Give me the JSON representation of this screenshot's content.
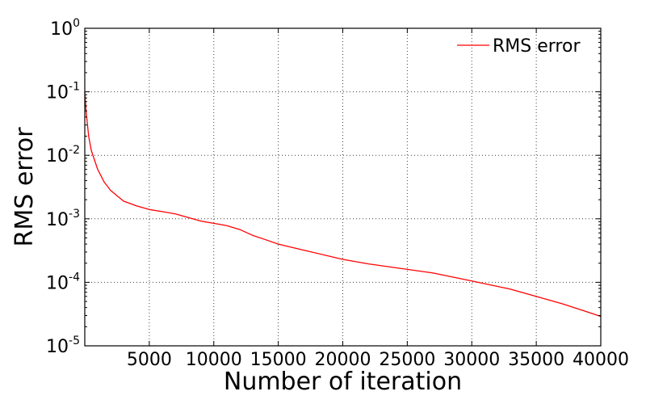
{
  "chart_data": {
    "type": "line",
    "xlabel": "Number of iteration",
    "ylabel": "RMS error",
    "xlim": [
      0,
      40000
    ],
    "ylim": [
      1e-05,
      1
    ],
    "yscale": "log",
    "grid": true,
    "legend_position": "top-right",
    "x_ticks": [
      5000,
      10000,
      15000,
      20000,
      25000,
      30000,
      35000,
      40000
    ],
    "x_tick_labels": [
      "5000",
      "10000",
      "15000",
      "20000",
      "25000",
      "30000",
      "35000",
      "40000"
    ],
    "y_ticks": [
      1,
      0.1,
      0.01,
      0.001,
      0.0001,
      1e-05
    ],
    "y_tick_labels": [
      {
        "base": "10",
        "exp": "0"
      },
      {
        "base": "10",
        "exp": "-1"
      },
      {
        "base": "10",
        "exp": "-2"
      },
      {
        "base": "10",
        "exp": "-3"
      },
      {
        "base": "10",
        "exp": "-4"
      },
      {
        "base": "10",
        "exp": "-5"
      }
    ],
    "series": [
      {
        "name": "RMS error",
        "color": "#ff0000",
        "x": [
          0,
          100,
          300,
          500,
          1000,
          1500,
          2000,
          3000,
          4000,
          5000,
          6000,
          7000,
          8000,
          9000,
          10000,
          11000,
          12000,
          13000,
          14000,
          15000,
          17000,
          20000,
          22000,
          25000,
          27000,
          30000,
          33000,
          35000,
          37000,
          39000,
          40000
        ],
        "y": [
          0.1,
          0.05,
          0.02,
          0.012,
          0.006,
          0.0038,
          0.0028,
          0.0019,
          0.0016,
          0.0014,
          0.0013,
          0.0012,
          0.00105,
          0.00092,
          0.00085,
          0.00078,
          0.00068,
          0.00055,
          0.00047,
          0.0004,
          0.00032,
          0.00023,
          0.000195,
          0.00016,
          0.00014,
          0.000105,
          7.8e-05,
          6e-05,
          4.6e-05,
          3.4e-05,
          2.9e-05
        ]
      }
    ]
  }
}
